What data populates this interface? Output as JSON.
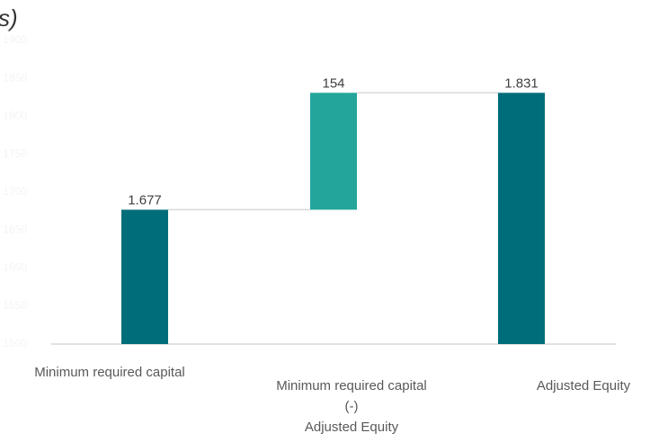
{
  "chart_data": {
    "type": "waterfall",
    "title": "s)",
    "categories": [
      "Minimum required capital",
      "Minimum required capital\n(-)\nAdjusted Equity",
      "Adjusted Equity"
    ],
    "values": [
      1677,
      154,
      1831
    ],
    "value_labels": [
      "1.677",
      "154",
      "1.831"
    ],
    "totals": [
      true,
      false,
      true
    ],
    "colors": [
      "#006d7a",
      "#23a59c",
      "#006d7a"
    ],
    "ylim": [
      1500,
      1900
    ],
    "yticks": [
      1500,
      1550,
      1600,
      1650,
      1700,
      1750,
      1800,
      1850,
      1900
    ],
    "grid": false
  }
}
